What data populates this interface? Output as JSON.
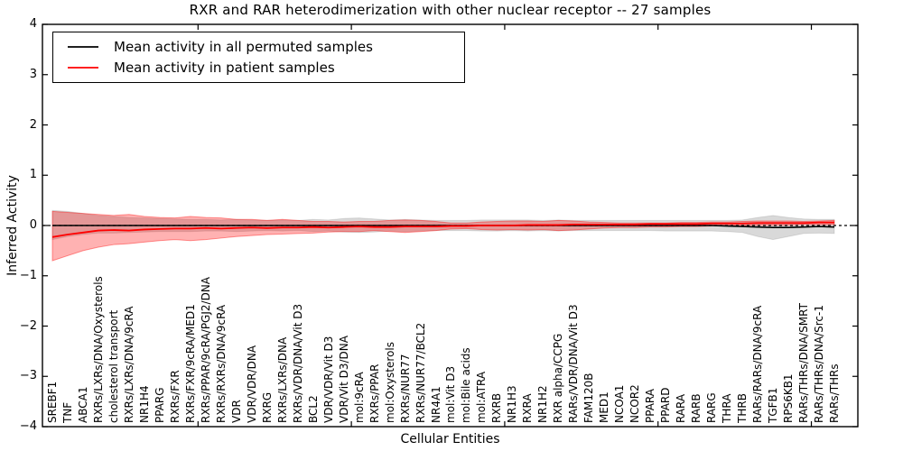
{
  "chart_data": {
    "type": "line",
    "title": "RXR and RAR heterodimerization with other nuclear receptor -- 27 samples",
    "xlabel": "Cellular Entities",
    "ylabel": "Inferred Activity",
    "ylim": [
      -4,
      4
    ],
    "yticks": [
      {
        "v": 4,
        "label": "4"
      },
      {
        "v": 3,
        "label": "3"
      },
      {
        "v": 2,
        "label": "2"
      },
      {
        "v": 1,
        "label": "1"
      },
      {
        "v": 0,
        "label": "0"
      },
      {
        "v": -1,
        "label": "−1"
      },
      {
        "v": -2,
        "label": "−2"
      },
      {
        "v": -3,
        "label": "−3"
      },
      {
        "v": -4,
        "label": "−4"
      }
    ],
    "x_major_tick_indices": [
      9.5,
      19.5,
      29.5,
      39.5,
      49.5
    ],
    "zero_line": {
      "y": 0,
      "style": "dashed",
      "color": "#000000"
    },
    "grid": false,
    "legend_position": "upper left",
    "categories": [
      "SREBF1",
      "TNF",
      "ABCA1",
      "RXRs/LXRs/DNA/Oxysterols",
      "cholesterol transport",
      "RXRs/LXRs/DNA/9cRA",
      "NR1H4",
      "PPARG",
      "RXRs/FXR",
      "RXRs/FXR/9cRA/MED1",
      "RXRs/PPAR/9cRA/PGJ2/DNA",
      "RXRs/RXRs/DNA/9cRA",
      "VDR",
      "VDR/VDR/DNA",
      "RXRG",
      "RXRs/LXRs/DNA",
      "RXRs/VDR/DNA/Vit D3",
      "BCL2",
      "VDR/VDR/Vit D3",
      "VDR/Vit D3/DNA",
      "mol:9cRA",
      "RXRs/PPAR",
      "mol:Oxysterols",
      "RXRs/NUR77",
      "RXRs/NUR77/BCL2",
      "NR4A1",
      "mol:Vit D3",
      "mol:Bile acids",
      "mol:ATRA",
      "RXRB",
      "NR1H3",
      "RXRA",
      "NR1H2",
      "RXR alpha/CCPG",
      "RARs/VDR/DNA/Vit D3",
      "FAM120B",
      "MED1",
      "NCOA1",
      "NCOR2",
      "PPARA",
      "PPARD",
      "RARA",
      "RARB",
      "RARG",
      "THRA",
      "THRB",
      "RARs/RARs/DNA/9cRA",
      "TGFB1",
      "RPS6KB1",
      "RARs/THRs/DNA/SMRT",
      "RARs/THRs/DNA/Src-1",
      "RARs/THRs"
    ],
    "series": [
      {
        "name": "Mean activity in all permuted samples",
        "color": "#000000",
        "band_color": "rgba(0,0,0,0.15)",
        "values": [
          0,
          0,
          0,
          0,
          0,
          0,
          0,
          0,
          0,
          0,
          0,
          0,
          0,
          0,
          0,
          0,
          0,
          0,
          0,
          0,
          0,
          0,
          0,
          0,
          0,
          0,
          0,
          0,
          0,
          0,
          0,
          0,
          0,
          0,
          0,
          0,
          0,
          0,
          0,
          0,
          0,
          0,
          0,
          0,
          -0.01,
          -0.02,
          -0.03,
          -0.04,
          -0.04,
          -0.03,
          -0.02,
          -0.03
        ],
        "band_lower": [
          -0.28,
          -0.22,
          -0.18,
          -0.15,
          -0.15,
          -0.14,
          -0.13,
          -0.12,
          -0.12,
          -0.12,
          -0.11,
          -0.11,
          -0.12,
          -0.11,
          -0.1,
          -0.11,
          -0.1,
          -0.12,
          -0.11,
          -0.13,
          -0.14,
          -0.13,
          -0.11,
          -0.12,
          -0.11,
          -0.1,
          -0.1,
          -0.1,
          -0.11,
          -0.11,
          -0.1,
          -0.11,
          -0.1,
          -0.11,
          -0.1,
          -0.1,
          -0.1,
          -0.1,
          -0.1,
          -0.1,
          -0.11,
          -0.11,
          -0.11,
          -0.11,
          -0.12,
          -0.14,
          -0.22,
          -0.28,
          -0.22,
          -0.16,
          -0.15,
          -0.16
        ],
        "band_upper": [
          0.3,
          0.28,
          0.24,
          0.2,
          0.18,
          0.16,
          0.15,
          0.14,
          0.13,
          0.12,
          0.12,
          0.11,
          0.12,
          0.11,
          0.1,
          0.11,
          0.1,
          0.12,
          0.11,
          0.14,
          0.15,
          0.13,
          0.11,
          0.12,
          0.11,
          0.1,
          0.1,
          0.1,
          0.11,
          0.11,
          0.11,
          0.11,
          0.1,
          0.11,
          0.1,
          0.1,
          0.1,
          0.1,
          0.1,
          0.1,
          0.1,
          0.1,
          0.1,
          0.1,
          0.1,
          0.11,
          0.16,
          0.2,
          0.16,
          0.13,
          0.12,
          0.12
        ]
      },
      {
        "name": "Mean activity in patient samples",
        "color": "#ff0000",
        "band_color": "rgba(255,0,0,0.30)",
        "values": [
          -0.23,
          -0.18,
          -0.14,
          -0.1,
          -0.09,
          -0.1,
          -0.08,
          -0.07,
          -0.06,
          -0.06,
          -0.05,
          -0.06,
          -0.05,
          -0.04,
          -0.05,
          -0.04,
          -0.04,
          -0.03,
          -0.04,
          -0.03,
          -0.02,
          -0.03,
          -0.03,
          -0.02,
          -0.02,
          -0.02,
          -0.01,
          -0.01,
          0,
          0,
          0,
          0.01,
          0.01,
          0.01,
          0.02,
          0.02,
          0.02,
          0.02,
          0.02,
          0.03,
          0.03,
          0.03,
          0.03,
          0.04,
          0.04,
          0.04,
          0.05,
          0.05,
          0.05,
          0.05,
          0.06,
          0.06
        ],
        "band_lower": [
          -0.7,
          -0.6,
          -0.5,
          -0.43,
          -0.38,
          -0.36,
          -0.33,
          -0.3,
          -0.28,
          -0.3,
          -0.28,
          -0.25,
          -0.22,
          -0.2,
          -0.18,
          -0.17,
          -0.16,
          -0.15,
          -0.13,
          -0.12,
          -0.12,
          -0.1,
          -0.12,
          -0.14,
          -0.12,
          -0.1,
          -0.07,
          -0.06,
          -0.08,
          -0.09,
          -0.08,
          -0.09,
          -0.08,
          -0.1,
          -0.09,
          -0.07,
          -0.05,
          -0.04,
          -0.04,
          -0.03,
          -0.03,
          -0.02,
          -0.02,
          -0.01,
          0,
          0,
          0.01,
          0.01,
          0.01,
          0.02,
          0.02,
          0.02
        ],
        "band_upper": [
          0.28,
          0.26,
          0.24,
          0.22,
          0.2,
          0.22,
          0.18,
          0.16,
          0.15,
          0.18,
          0.16,
          0.15,
          0.12,
          0.12,
          0.1,
          0.12,
          0.1,
          0.08,
          0.08,
          0.07,
          0.08,
          0.08,
          0.1,
          0.11,
          0.1,
          0.08,
          0.05,
          0.05,
          0.07,
          0.08,
          0.09,
          0.09,
          0.08,
          0.1,
          0.09,
          0.07,
          0.06,
          0.05,
          0.05,
          0.05,
          0.05,
          0.06,
          0.06,
          0.07,
          0.07,
          0.08,
          0.09,
          0.09,
          0.09,
          0.08,
          0.09,
          0.1
        ]
      }
    ]
  }
}
